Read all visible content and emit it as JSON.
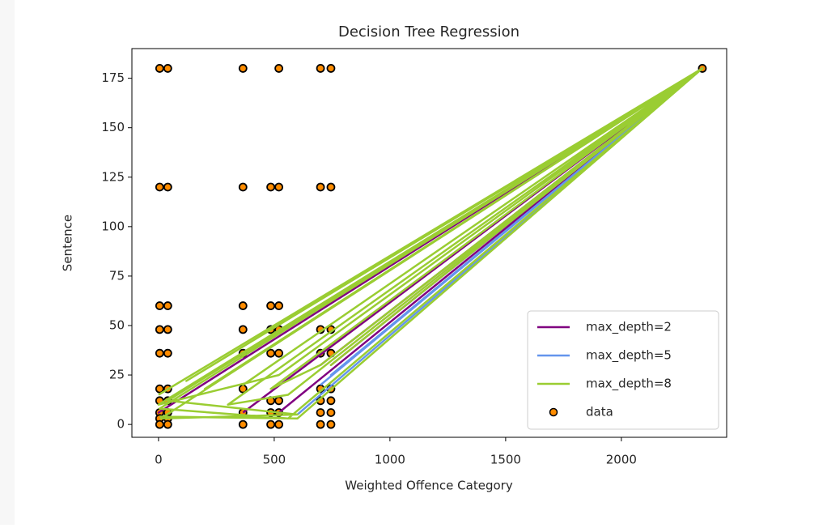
{
  "chart_data": {
    "type": "line",
    "title": "Decision Tree Regression",
    "x_label": "Weighted Offence Category",
    "y_label": "Sentence",
    "xlim": [
      -115,
      2455
    ],
    "ylim": [
      -6.5,
      190
    ],
    "xticks": [
      0,
      500,
      1000,
      1500,
      2000
    ],
    "yticks": [
      0,
      25,
      50,
      75,
      100,
      125,
      150,
      175
    ],
    "legend": "lower right",
    "series": [
      {
        "name": "data",
        "type": "scatter",
        "color": "#ff8c00",
        "edge_color": "#000000",
        "x": [
          5,
          5,
          5,
          5,
          5,
          5,
          5,
          5,
          5,
          5,
          40,
          40,
          40,
          40,
          40,
          40,
          40,
          40,
          40,
          40,
          365,
          365,
          365,
          365,
          365,
          365,
          365,
          365,
          485,
          485,
          485,
          485,
          485,
          485,
          485,
          520,
          520,
          520,
          520,
          520,
          520,
          520,
          520,
          700,
          700,
          700,
          700,
          700,
          700,
          700,
          700,
          745,
          745,
          745,
          745,
          745,
          745,
          745,
          745,
          2350
        ],
        "values": [
          180,
          120,
          60,
          48,
          36,
          18,
          12,
          6,
          3,
          0,
          180,
          120,
          60,
          48,
          36,
          18,
          12,
          6,
          3,
          0,
          180,
          120,
          60,
          48,
          36,
          18,
          6,
          0,
          120,
          60,
          48,
          36,
          12,
          6,
          0,
          180,
          120,
          60,
          48,
          36,
          12,
          6,
          0,
          180,
          120,
          48,
          36,
          18,
          12,
          6,
          0,
          180,
          120,
          48,
          36,
          18,
          12,
          6,
          0,
          180
        ]
      },
      {
        "name": "max_depth=2",
        "type": "line",
        "color": "#800080",
        "x": [
          700,
          2350,
          0,
          2350,
          520,
          2350,
          745,
          2350,
          365
        ],
        "values": [
          30,
          180,
          6,
          180,
          6,
          180,
          30,
          180,
          6
        ]
      },
      {
        "name": "max_depth=5",
        "type": "line",
        "color": "#6495ed",
        "x": [
          700,
          2350,
          745,
          2350,
          600
        ],
        "values": [
          20,
          180,
          25,
          180,
          5
        ]
      },
      {
        "name": "max_depth=8",
        "type": "line",
        "color": "#9acd32",
        "x": [
          0,
          2350,
          200,
          2350,
          5,
          560,
          2350,
          40,
          600,
          10,
          2350,
          365,
          2350,
          520,
          0,
          2350,
          485,
          700,
          2350,
          745,
          2350,
          300,
          560,
          2350,
          120,
          2350,
          600,
          5
        ],
        "values": [
          15,
          180,
          18,
          180,
          8,
          3,
          180,
          12,
          5,
          3,
          180,
          20,
          180,
          25,
          10,
          180,
          18,
          30,
          180,
          30,
          180,
          10,
          15,
          180,
          22,
          180,
          3,
          4
        ]
      }
    ]
  }
}
